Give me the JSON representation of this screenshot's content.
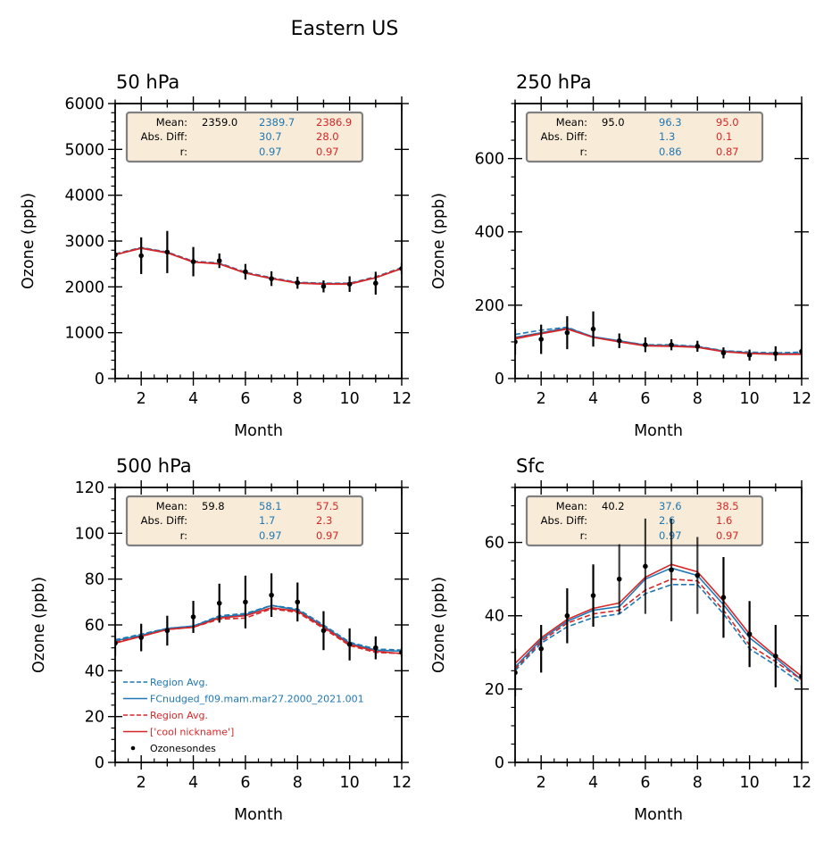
{
  "figure": {
    "title": "Eastern US"
  },
  "colors": {
    "blue": "#1f77b4",
    "red": "#d62728",
    "obs": "#000000",
    "stats_box_fill": "#f8ecd9",
    "stats_box_edge": "#808080"
  },
  "legend": {
    "location": "lower-left of 500 hPa panel",
    "entries": [
      {
        "label": "Region Avg.",
        "color": "#1f77b4",
        "style": "dashed"
      },
      {
        "label": "FCnudged_f09.mam.mar27.2000_2021.001",
        "color": "#1f77b4",
        "style": "solid"
      },
      {
        "label": "Region Avg.",
        "color": "#d62728",
        "style": "dashed"
      },
      {
        "label": "['cool nickname']",
        "color": "#d62728",
        "style": "solid"
      },
      {
        "label": "Ozonesondes",
        "color": "#000000",
        "style": "marker"
      }
    ]
  },
  "chart_data": [
    {
      "type": "line",
      "title": "50 hPa",
      "xlabel": "Month",
      "ylabel": "Ozone (ppb)",
      "xlim": [
        1,
        12
      ],
      "ylim": [
        0,
        6000
      ],
      "xticks": [
        2,
        4,
        6,
        8,
        10,
        12
      ],
      "yticks": [
        0,
        1000,
        2000,
        3000,
        4000,
        5000,
        6000
      ],
      "y_minor_step": 200,
      "x": [
        1,
        2,
        3,
        4,
        5,
        6,
        7,
        8,
        9,
        10,
        11,
        12
      ],
      "series": [
        {
          "name": "Region Avg. (blue dashed)",
          "color": "#1f77b4",
          "style": "dashed",
          "values": [
            2720,
            2860,
            2760,
            2560,
            2520,
            2320,
            2200,
            2100,
            2080,
            2080,
            2220,
            2420
          ]
        },
        {
          "name": "FCnudged_f09.mam.mar27.2000_2021.001",
          "color": "#1f77b4",
          "style": "solid",
          "values": [
            2700,
            2850,
            2750,
            2540,
            2510,
            2300,
            2180,
            2090,
            2070,
            2070,
            2200,
            2400
          ]
        },
        {
          "name": "Region Avg. (red dashed)",
          "color": "#d62728",
          "style": "dashed",
          "values": [
            2710,
            2850,
            2750,
            2550,
            2510,
            2310,
            2190,
            2090,
            2070,
            2070,
            2210,
            2410
          ]
        },
        {
          "name": "['cool nickname']",
          "color": "#d62728",
          "style": "solid",
          "values": [
            2700,
            2840,
            2740,
            2540,
            2500,
            2300,
            2180,
            2080,
            2060,
            2060,
            2200,
            2400
          ]
        }
      ],
      "observations": {
        "name": "Ozonesondes",
        "values": [
          2700,
          2680,
          2760,
          2550,
          2570,
          2330,
          2180,
          2090,
          2010,
          2060,
          2080,
          2400
        ],
        "err": [
          350,
          400,
          460,
          320,
          160,
          170,
          160,
          130,
          130,
          170,
          250,
          120
        ]
      },
      "stats": {
        "labels": [
          "Mean:",
          "Abs. Diff:",
          "r:"
        ],
        "obs": {
          "mean": "2359.0"
        },
        "blue": {
          "mean": "2389.7",
          "abs_diff": "30.7",
          "r": "0.97"
        },
        "red": {
          "mean": "2386.9",
          "abs_diff": "28.0",
          "r": "0.97"
        }
      }
    },
    {
      "type": "line",
      "title": "250 hPa",
      "xlabel": "Month",
      "ylabel": "Ozone (ppb)",
      "xlim": [
        1,
        12
      ],
      "ylim": [
        0,
        750
      ],
      "xticks": [
        2,
        4,
        6,
        8,
        10,
        12
      ],
      "yticks": [
        0,
        200,
        400,
        600
      ],
      "y_minor_step": 50,
      "x": [
        1,
        2,
        3,
        4,
        5,
        6,
        7,
        8,
        9,
        10,
        11,
        12
      ],
      "series": [
        {
          "name": "Region Avg. (blue dashed)",
          "color": "#1f77b4",
          "style": "dashed",
          "values": [
            120,
            132,
            140,
            113,
            102,
            92,
            92,
            88,
            76,
            72,
            70,
            72
          ]
        },
        {
          "name": "FCnudged_f09.mam.mar27.2000_2021.001",
          "color": "#1f77b4",
          "style": "solid",
          "values": [
            112,
            125,
            138,
            114,
            103,
            91,
            90,
            87,
            75,
            70,
            68,
            68
          ]
        },
        {
          "name": "Region Avg. (red dashed)",
          "color": "#d62728",
          "style": "dashed",
          "values": [
            110,
            124,
            136,
            112,
            101,
            90,
            89,
            86,
            74,
            69,
            67,
            67
          ]
        },
        {
          "name": "['cool nickname']",
          "color": "#d62728",
          "style": "solid",
          "values": [
            108,
            122,
            135,
            112,
            100,
            89,
            88,
            85,
            73,
            68,
            66,
            66
          ]
        }
      ],
      "observations": {
        "name": "Ozonesondes",
        "values": [
          100,
          107,
          125,
          135,
          103,
          92,
          92,
          88,
          70,
          64,
          68,
          74
        ],
        "err": [
          35,
          40,
          45,
          48,
          20,
          20,
          15,
          15,
          15,
          15,
          20,
          10
        ]
      },
      "stats": {
        "labels": [
          "Mean:",
          "Abs. Diff:",
          "r:"
        ],
        "obs": {
          "mean": "95.0"
        },
        "blue": {
          "mean": "96.3",
          "abs_diff": "1.3",
          "r": "0.86"
        },
        "red": {
          "mean": "95.0",
          "abs_diff": "0.1",
          "r": "0.87"
        }
      }
    },
    {
      "type": "line",
      "title": "500 hPa",
      "xlabel": "Month",
      "ylabel": "Ozone (ppb)",
      "xlim": [
        1,
        12
      ],
      "ylim": [
        0,
        120
      ],
      "xticks": [
        2,
        4,
        6,
        8,
        10,
        12
      ],
      "yticks": [
        0,
        20,
        40,
        60,
        80,
        100,
        120
      ],
      "y_minor_step": 5,
      "x": [
        1,
        2,
        3,
        4,
        5,
        6,
        7,
        8,
        9,
        10,
        11,
        12
      ],
      "series": [
        {
          "name": "Region Avg. (blue dashed)",
          "color": "#1f77b4",
          "style": "dashed",
          "values": [
            53.5,
            56,
            58.5,
            59.5,
            64,
            65,
            68.5,
            67,
            60,
            52.5,
            49.5,
            49
          ]
        },
        {
          "name": "FCnudged_f09.mam.mar27.2000_2021.001",
          "color": "#1f77b4",
          "style": "solid",
          "values": [
            53,
            55.5,
            58.5,
            59.5,
            63.5,
            64.5,
            68.5,
            66.5,
            59.5,
            52,
            49,
            48.5
          ]
        },
        {
          "name": "Region Avg. (red dashed)",
          "color": "#d62728",
          "style": "dashed",
          "values": [
            52.5,
            55,
            58,
            59,
            62.5,
            63,
            67,
            65.5,
            58.5,
            51,
            48,
            47.5
          ]
        },
        {
          "name": "['cool nickname']",
          "color": "#d62728",
          "style": "solid",
          "values": [
            52,
            55,
            58,
            59,
            63,
            64,
            67.5,
            66,
            59,
            51.5,
            48.5,
            47.5
          ]
        }
      ],
      "observations": {
        "name": "Ozonesondes",
        "values": [
          52,
          54.5,
          57.5,
          63.5,
          69.5,
          70,
          73,
          70,
          57.5,
          51.5,
          50,
          48
        ],
        "err": [
          5.5,
          6,
          6.5,
          7,
          8.5,
          11.5,
          9.5,
          8.5,
          8.5,
          7,
          5,
          2
        ]
      },
      "stats": {
        "labels": [
          "Mean:",
          "Abs. Diff:",
          "r:"
        ],
        "obs": {
          "mean": "59.8"
        },
        "blue": {
          "mean": "58.1",
          "abs_diff": "1.7",
          "r": "0.97"
        },
        "red": {
          "mean": "57.5",
          "abs_diff": "2.3",
          "r": "0.97"
        }
      }
    },
    {
      "type": "line",
      "title": "Sfc",
      "xlabel": "Month",
      "ylabel": "Ozone (ppb)",
      "xlim": [
        1,
        12
      ],
      "ylim": [
        0,
        75
      ],
      "xticks": [
        2,
        4,
        6,
        8,
        10,
        12
      ],
      "yticks": [
        0,
        20,
        40,
        60
      ],
      "y_minor_step": 5,
      "x": [
        1,
        2,
        3,
        4,
        5,
        6,
        7,
        8,
        9,
        10,
        11,
        12
      ],
      "series": [
        {
          "name": "Region Avg. (blue dashed)",
          "color": "#1f77b4",
          "style": "dashed",
          "values": [
            25,
            32.5,
            37,
            39.5,
            40.5,
            46,
            48.5,
            48.5,
            40.5,
            31,
            26.5,
            21.5
          ]
        },
        {
          "name": "FCnudged_f09.mam.mar27.2000_2021.001",
          "color": "#1f77b4",
          "style": "solid",
          "values": [
            26,
            33.5,
            38.5,
            41.5,
            42.5,
            50,
            53,
            51,
            43,
            34,
            28.5,
            22.5
          ]
        },
        {
          "name": "Region Avg. (red dashed)",
          "color": "#d62728",
          "style": "dashed",
          "values": [
            25.5,
            33,
            38,
            40.5,
            41.5,
            47,
            50,
            49.5,
            41.5,
            32,
            27.5,
            22.5
          ]
        },
        {
          "name": "['cool nickname']",
          "color": "#d62728",
          "style": "solid",
          "values": [
            27,
            34,
            39,
            42,
            43.5,
            50.5,
            54,
            52,
            44,
            35,
            29,
            23.5
          ]
        }
      ],
      "observations": {
        "name": "Ozonesondes",
        "values": [
          24.5,
          31,
          40,
          45.5,
          50,
          53.5,
          52.5,
          51,
          45,
          35,
          29,
          23.5
        ],
        "err": [
          6.5,
          6.5,
          7.5,
          8.5,
          9.5,
          13,
          14,
          10.5,
          11,
          9,
          8.5,
          3
        ]
      },
      "stats": {
        "labels": [
          "Mean:",
          "Abs. Diff:",
          "r:"
        ],
        "obs": {
          "mean": "40.2"
        },
        "blue": {
          "mean": "37.6",
          "abs_diff": "2.6",
          "r": "0.97"
        },
        "red": {
          "mean": "38.5",
          "abs_diff": "1.6",
          "r": "0.97"
        }
      }
    }
  ]
}
